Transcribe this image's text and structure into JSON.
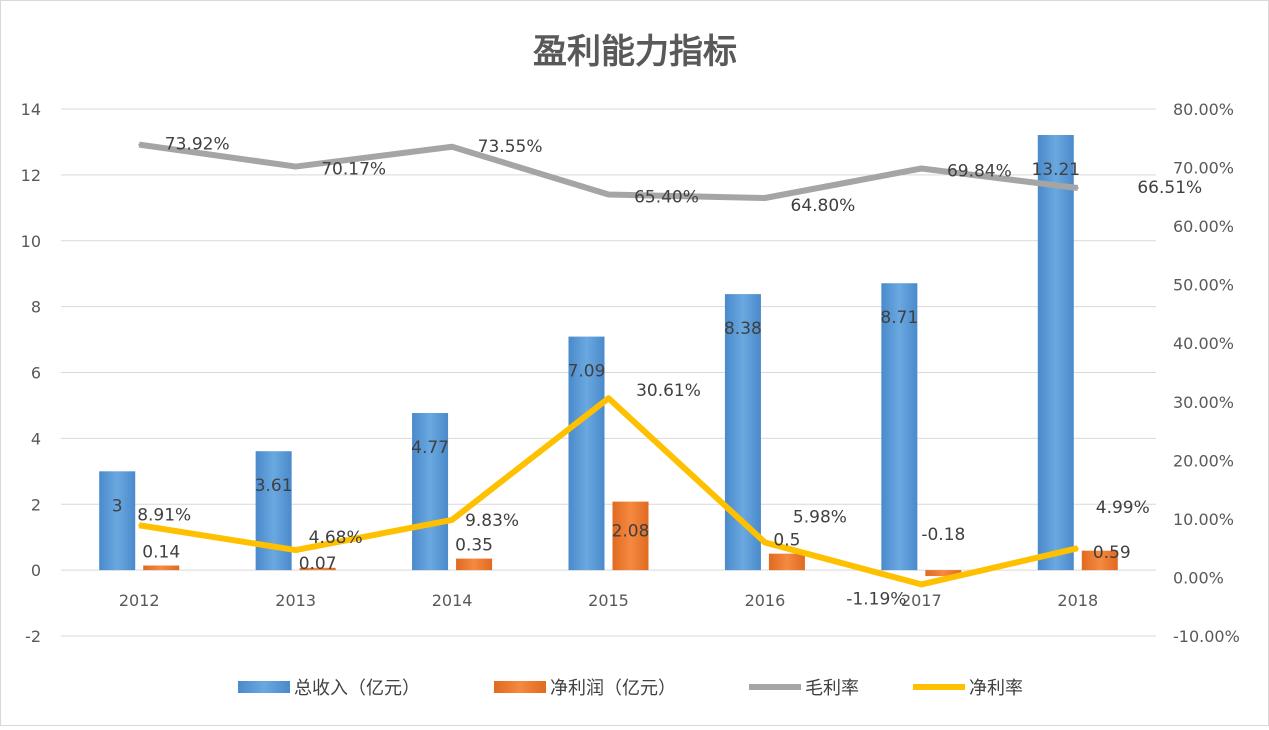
{
  "chart_data": {
    "type": "bar+line",
    "title": "盈利能力指标",
    "categories": [
      "2012",
      "2013",
      "2014",
      "2015",
      "2016",
      "2017",
      "2018"
    ],
    "series": [
      {
        "name": "总收入（亿元）",
        "type": "bar",
        "axis": "left",
        "color": "#5B9BD5",
        "values": [
          3,
          3.61,
          4.77,
          7.09,
          8.38,
          8.71,
          13.21
        ],
        "labels": [
          "3",
          "3.61",
          "4.77",
          "7.09",
          "8.38",
          "8.71",
          "13.21"
        ]
      },
      {
        "name": "净利润（亿元）",
        "type": "bar",
        "axis": "left",
        "color": "#ED7D31",
        "values": [
          0.14,
          0.07,
          0.35,
          2.08,
          0.5,
          -0.18,
          0.59
        ],
        "labels": [
          "0.14",
          "0.07",
          "0.35",
          "2.08",
          "0.5",
          "-0.18",
          "0.59"
        ]
      },
      {
        "name": "毛利率",
        "type": "line",
        "axis": "right",
        "color": "#A5A5A5",
        "values": [
          73.92,
          70.17,
          73.55,
          65.4,
          64.8,
          69.84,
          66.51
        ],
        "labels": [
          "73.92%",
          "70.17%",
          "73.55%",
          "65.40%",
          "64.80%",
          "69.84%",
          "66.51%"
        ]
      },
      {
        "name": "净利率",
        "type": "line",
        "axis": "right",
        "color": "#FFC000",
        "values": [
          8.91,
          4.68,
          9.83,
          30.61,
          5.98,
          -1.19,
          4.99
        ],
        "labels": [
          "8.91%",
          "4.68%",
          "9.83%",
          "30.61%",
          "5.98%",
          "-1.19%",
          "4.99%"
        ]
      }
    ],
    "left_axis": {
      "ylim": [
        -2,
        14
      ],
      "ticks": [
        "14",
        "12",
        "10",
        "8",
        "6",
        "4",
        "2",
        "0",
        "-2"
      ]
    },
    "right_axis": {
      "ylim": [
        -10,
        80
      ],
      "ticks": [
        "80.00%",
        "70.00%",
        "60.00%",
        "50.00%",
        "40.00%",
        "30.00%",
        "20.00%",
        "10.00%",
        "0.00%",
        "-10.00%"
      ]
    },
    "grid": true,
    "legend": "bottom"
  }
}
